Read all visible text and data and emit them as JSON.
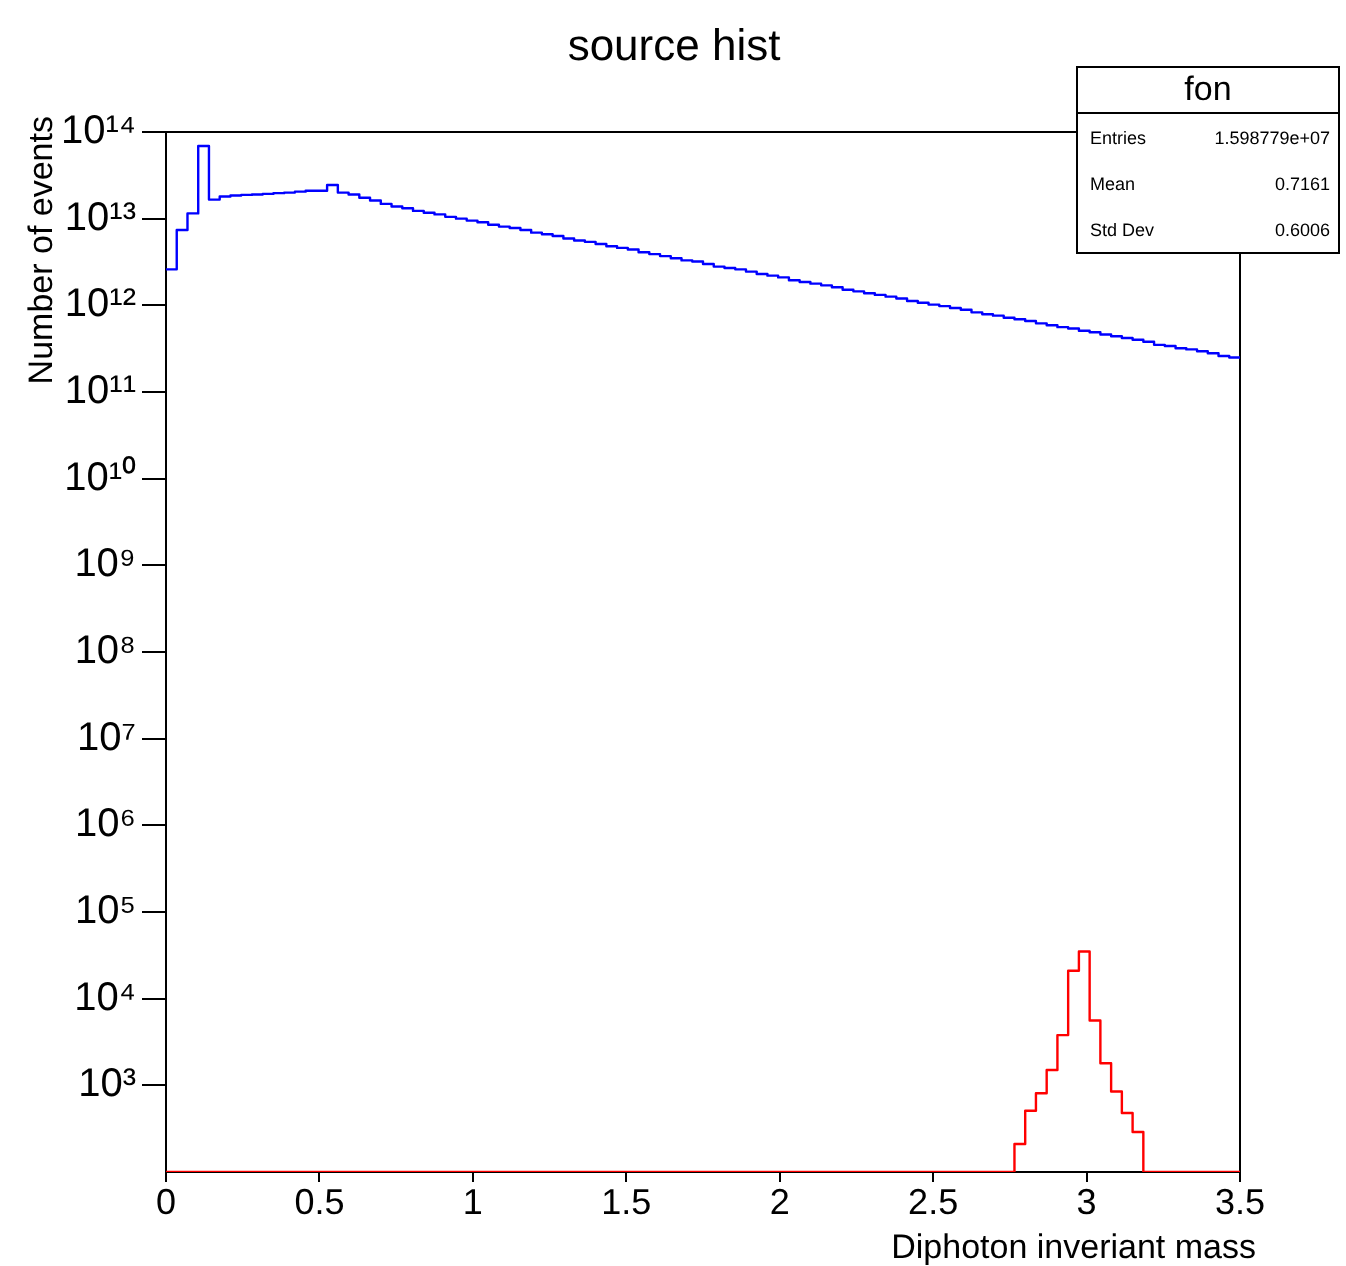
{
  "chart_data": {
    "type": "histogram",
    "title": "source hist",
    "xlabel": "Diphoton inveriant mass",
    "ylabel": "Number of events",
    "log": "y",
    "xlim": [
      0,
      3.5
    ],
    "xticks": [
      0,
      0.5,
      1,
      1.5,
      2,
      2.5,
      3,
      3.5
    ],
    "ylim": [
      100,
      100000000000000.0
    ],
    "yticks": [
      {
        "value": 1000.0,
        "label": "10³"
      },
      {
        "value": 10000.0,
        "label": "10⁴"
      },
      {
        "value": 100000.0,
        "label": "10⁵"
      },
      {
        "value": 1000000.0,
        "label": "10⁶"
      },
      {
        "value": 10000000.0,
        "label": "10⁷"
      },
      {
        "value": 100000000.0,
        "label": "10⁸"
      },
      {
        "value": 1000000000.0,
        "label": "10⁹"
      },
      {
        "value": 10000000000.0,
        "label": "10¹⁰"
      },
      {
        "value": 100000000000.0,
        "label": "10¹¹"
      },
      {
        "value": 1000000000000.0,
        "label": "10¹²"
      },
      {
        "value": 10000000000000.0,
        "label": "10¹³"
      },
      {
        "value": 100000000000000.0,
        "label": "10¹⁴"
      }
    ],
    "bins": [
      0,
      0.035,
      0.07,
      0.105,
      0.14,
      0.175,
      0.21,
      0.245,
      0.28,
      0.315,
      0.35,
      0.385,
      0.42,
      0.455,
      0.49,
      0.525,
      0.56,
      0.595,
      0.63,
      0.665,
      0.7,
      0.735,
      0.77,
      0.805,
      0.84,
      0.875,
      0.91,
      0.945,
      0.98,
      1.015,
      1.05,
      1.085,
      1.12,
      1.155,
      1.19,
      1.225,
      1.26,
      1.295,
      1.33,
      1.365,
      1.4,
      1.435,
      1.47,
      1.505,
      1.54,
      1.575,
      1.61,
      1.645,
      1.68,
      1.715,
      1.75,
      1.785,
      1.82,
      1.855,
      1.89,
      1.925,
      1.96,
      1.995,
      2.03,
      2.065,
      2.1,
      2.135,
      2.17,
      2.205,
      2.24,
      2.275,
      2.31,
      2.345,
      2.38,
      2.415,
      2.45,
      2.485,
      2.52,
      2.555,
      2.59,
      2.625,
      2.66,
      2.695,
      2.73,
      2.765,
      2.8,
      2.835,
      2.87,
      2.905,
      2.94,
      2.975,
      3.01,
      3.045,
      3.08,
      3.115,
      3.15,
      3.185,
      3.22,
      3.255,
      3.29,
      3.325,
      3.36,
      3.395,
      3.43,
      3.465,
      3.5
    ],
    "series": [
      {
        "color": "#0000ff",
        "values": [
          2600000000000.0,
          7400000000000.0,
          11500000000000.0,
          69000000000000.0,
          16600000000000.0,
          18000000000000.0,
          18500000000000.0,
          18800000000000.0,
          19000000000000.0,
          19300000000000.0,
          19700000000000.0,
          20000000000000.0,
          20500000000000.0,
          21000000000000.0,
          21000000000000.0,
          24500000000000.0,
          20000000000000.0,
          19000000000000.0,
          17400000000000.0,
          16200000000000.0,
          14800000000000.0,
          13800000000000.0,
          13200000000000.0,
          12300000000000.0,
          11700000000000.0,
          11200000000000.0,
          10500000000000.0,
          10000000000000.0,
          9500000000000.0,
          9100000000000.0,
          8500000000000.0,
          8100000000000.0,
          7800000000000.0,
          7400000000000.0,
          6900000000000.0,
          6600000000000.0,
          6300000000000.0,
          5900000000000.0,
          5600000000000.0,
          5400000000000.0,
          5100000000000.0,
          4800000000000.0,
          4600000000000.0,
          4400000000000.0,
          4100000000000.0,
          3900000000000.0,
          3700000000000.0,
          3500000000000.0,
          3300000000000.0,
          3200000000000.0,
          3000000000000.0,
          2800000000000.0,
          2700000000000.0,
          2600000000000.0,
          2450000000000.0,
          2300000000000.0,
          2200000000000.0,
          2100000000000.0,
          1950000000000.0,
          1860000000000.0,
          1780000000000.0,
          1700000000000.0,
          1620000000000.0,
          1510000000000.0,
          1450000000000.0,
          1380000000000.0,
          1320000000000.0,
          1260000000000.0,
          1200000000000.0,
          1120000000000.0,
          1070000000000.0,
          1020000000000.0,
          980000000000.0,
          930000000000.0,
          890000000000.0,
          830000000000.0,
          790000000000.0,
          760000000000.0,
          720000000000.0,
          690000000000.0,
          660000000000.0,
          620000000000.0,
          590000000000.0,
          560000000000.0,
          540000000000.0,
          510000000000.0,
          490000000000.0,
          460000000000.0,
          440000000000.0,
          420000000000.0,
          400000000000.0,
          380000000000.0,
          350000000000.0,
          340000000000.0,
          320000000000.0,
          310000000000.0,
          295000000000.0,
          280000000000.0,
          260000000000.0,
          250000000000.0
        ]
      },
      {
        "color": "#ff0000",
        "values": [
          null,
          null,
          null,
          null,
          null,
          null,
          null,
          null,
          null,
          null,
          null,
          null,
          null,
          null,
          null,
          null,
          null,
          null,
          null,
          null,
          null,
          null,
          null,
          null,
          null,
          null,
          null,
          null,
          null,
          null,
          null,
          null,
          null,
          null,
          null,
          null,
          null,
          null,
          null,
          null,
          null,
          null,
          null,
          null,
          null,
          null,
          null,
          null,
          null,
          null,
          null,
          null,
          null,
          null,
          null,
          null,
          null,
          null,
          null,
          null,
          null,
          null,
          null,
          null,
          null,
          null,
          null,
          null,
          null,
          null,
          null,
          null,
          null,
          null,
          null,
          null,
          null,
          null,
          null,
          210,
          510,
          810,
          1500,
          3800,
          21000,
          35000,
          5600,
          1800,
          850,
          480,
          290,
          null,
          null,
          null,
          null,
          null,
          null,
          null,
          null,
          null
        ]
      }
    ],
    "annotations": [
      "fon",
      "Entries",
      "1.598779e+07",
      "Mean",
      "0.7161",
      "Std Dev",
      "0.6006"
    ]
  }
}
